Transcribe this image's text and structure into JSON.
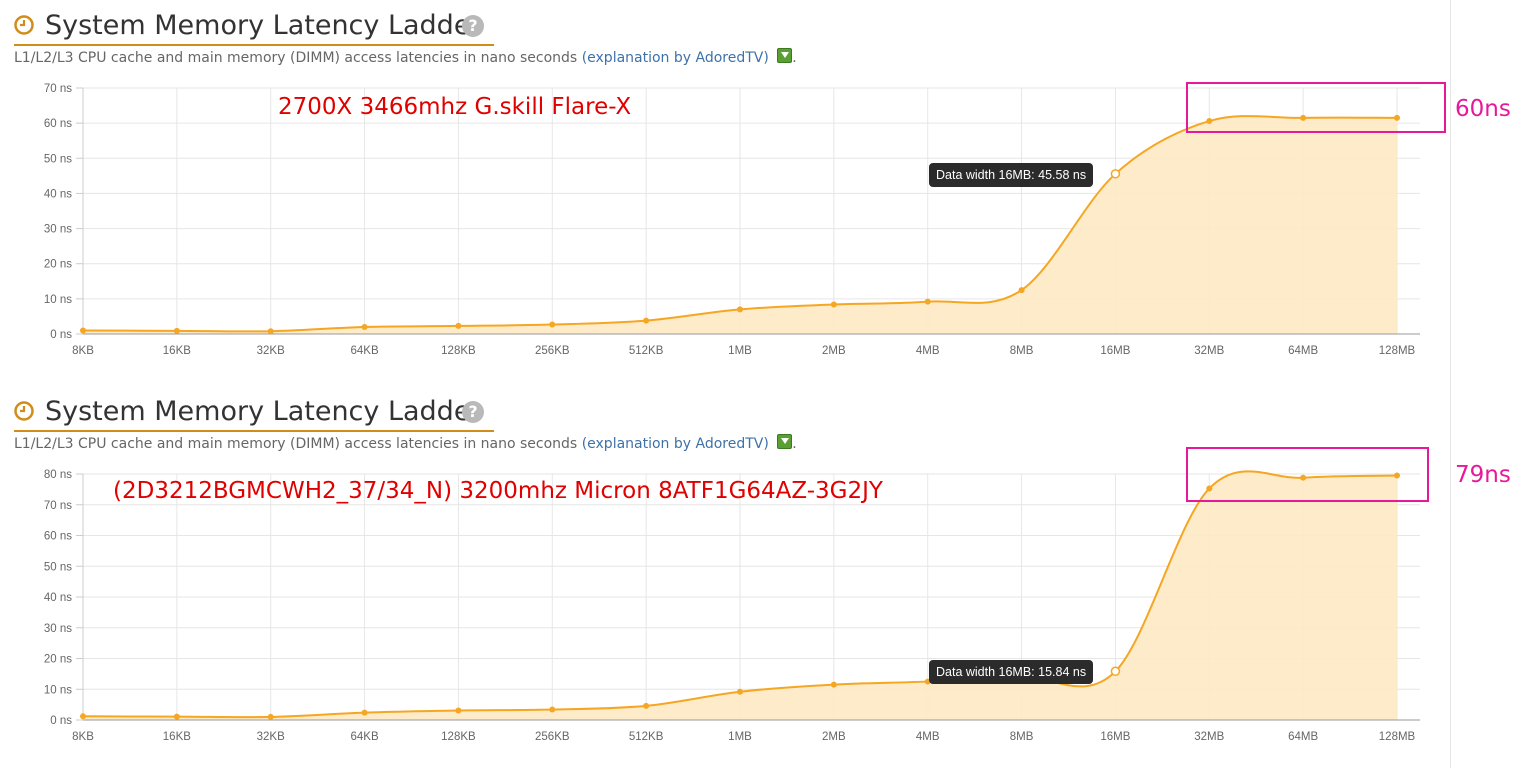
{
  "panels": [
    {
      "title": "System Memory Latency Ladder",
      "help": "?",
      "subtitle_prefix": "L1/L2/L3 CPU cache and main memory (DIMM) access latencies in nano seconds",
      "subtitle_link": "(explanation by AdoredTV)",
      "annotation": "2700X 3466mhz G.skill Flare-X",
      "badge": "60ns",
      "tooltip": "Data width 16MB: 45.58 ns"
    },
    {
      "title": "System Memory Latency Ladder",
      "help": "?",
      "subtitle_prefix": "L1/L2/L3 CPU cache and main memory (DIMM) access latencies in nano seconds",
      "subtitle_link": "(explanation by AdoredTV)",
      "annotation": "(2D3212BGMCWH2_37/34_N)  3200mhz  Micron 8ATF1G64AZ-3G2JY",
      "badge": "79ns",
      "tooltip": "Data width 16MB: 15.84 ns"
    }
  ],
  "colors": {
    "line": "#f5a623",
    "area": "#fde9c4",
    "title_underline": "#d18c19",
    "annotation": "#e00000",
    "highlight": "#e6199a"
  },
  "icons": {
    "clock": "clock-icon",
    "help": "help-icon",
    "download": "download-icon"
  },
  "chart_data": [
    {
      "type": "area",
      "categories": [
        "8KB",
        "16KB",
        "32KB",
        "64KB",
        "128KB",
        "256KB",
        "512KB",
        "1MB",
        "2MB",
        "4MB",
        "8MB",
        "16MB",
        "32MB",
        "64MB",
        "128MB"
      ],
      "series": [
        {
          "values": [
            1.0,
            0.9,
            0.8,
            2.0,
            2.3,
            2.7,
            3.8,
            7.0,
            8.4,
            9.2,
            12.5,
            45.58,
            60.6,
            61.5,
            61.5
          ]
        }
      ],
      "ylim": [
        0,
        70
      ],
      "yticks": [
        "0 ns",
        "10 ns",
        "20 ns",
        "30 ns",
        "40 ns",
        "50 ns",
        "60 ns",
        "70 ns"
      ],
      "highlight_index": 11,
      "grid": true
    },
    {
      "type": "area",
      "categories": [
        "8KB",
        "16KB",
        "32KB",
        "64KB",
        "128KB",
        "256KB",
        "512KB",
        "1MB",
        "2MB",
        "4MB",
        "8MB",
        "16MB",
        "32MB",
        "64MB",
        "128MB"
      ],
      "series": [
        {
          "values": [
            1.2,
            1.1,
            1.0,
            2.4,
            3.1,
            3.4,
            4.6,
            9.2,
            11.5,
            12.5,
            14.0,
            15.84,
            75.3,
            78.8,
            79.5
          ]
        }
      ],
      "ylim": [
        0,
        80
      ],
      "yticks": [
        "0 ns",
        "10 ns",
        "20 ns",
        "30 ns",
        "40 ns",
        "50 ns",
        "60 ns",
        "70 ns",
        "80 ns"
      ],
      "highlight_index": 11,
      "grid": true
    }
  ]
}
